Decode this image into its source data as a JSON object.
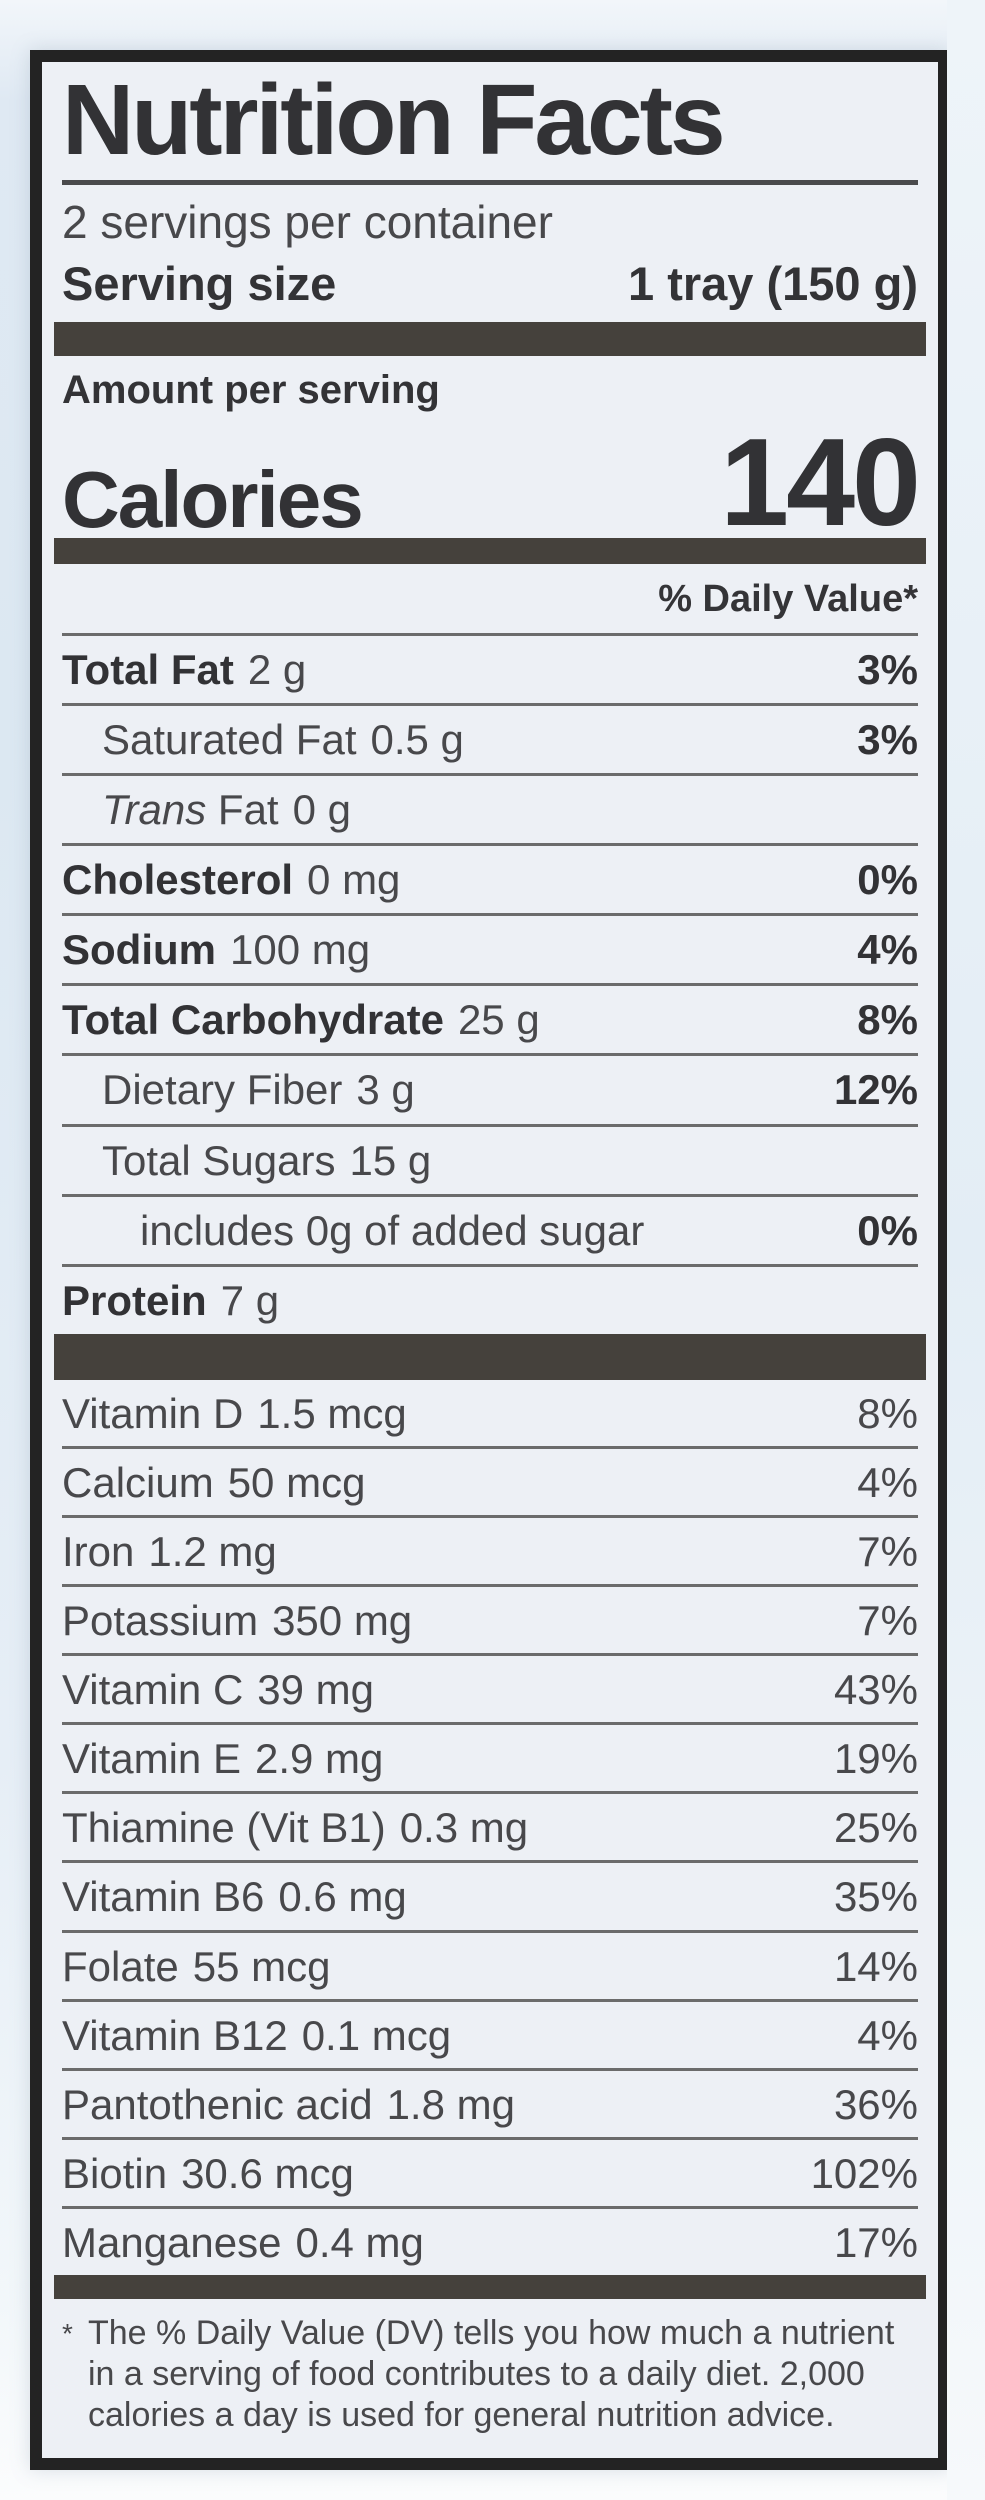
{
  "label": {
    "title": "Nutrition Facts",
    "servings_line": "2 servings per container",
    "serving_size_label": "Serving size",
    "serving_size_value": "1 tray (150 g)",
    "amount_per_serving_label": "Amount per serving",
    "calories_label": "Calories",
    "calories_value": "140",
    "daily_value_header": "% Daily Value*",
    "main_rows": [
      {
        "name": "Total Fat",
        "amount": "2 g",
        "dv": "3%",
        "bold": true,
        "dv_bold": true,
        "indent": 0
      },
      {
        "name": "Saturated Fat",
        "amount": "0.5 g",
        "dv": "3%",
        "bold": false,
        "dv_bold": true,
        "indent": 1
      },
      {
        "name": "Fat",
        "italic_prefix": "Trans",
        "amount": "0 g",
        "dv": "",
        "bold": false,
        "dv_bold": false,
        "indent": 1
      },
      {
        "name": "Cholesterol",
        "amount": "0 mg",
        "dv": "0%",
        "bold": true,
        "dv_bold": true,
        "indent": 0
      },
      {
        "name": "Sodium",
        "amount": "100 mg",
        "dv": "4%",
        "bold": true,
        "dv_bold": true,
        "indent": 0
      },
      {
        "name": "Total Carbohydrate",
        "amount": "25 g",
        "dv": "8%",
        "bold": true,
        "dv_bold": true,
        "indent": 0
      },
      {
        "name": "Dietary Fiber",
        "amount": "3 g",
        "dv": "12%",
        "bold": false,
        "dv_bold": true,
        "indent": 1
      },
      {
        "name": "Total Sugars",
        "amount": "15 g",
        "dv": "",
        "bold": false,
        "dv_bold": false,
        "indent": 1
      },
      {
        "name": "includes 0g of added sugar",
        "amount": "",
        "dv": "0%",
        "bold": false,
        "dv_bold": true,
        "indent": 2
      },
      {
        "name": "Protein",
        "amount": "7 g",
        "dv": "",
        "bold": true,
        "dv_bold": false,
        "indent": 0
      }
    ],
    "vitamin_rows": [
      {
        "name": "Vitamin D",
        "amount": "1.5 mcg",
        "dv": "8%"
      },
      {
        "name": "Calcium",
        "amount": "50 mcg",
        "dv": "4%"
      },
      {
        "name": "Iron",
        "amount": "1.2 mg",
        "dv": "7%"
      },
      {
        "name": "Potassium",
        "amount": "350 mg",
        "dv": "7%"
      },
      {
        "name": "Vitamin C",
        "amount": "39 mg",
        "dv": "43%"
      },
      {
        "name": "Vitamin E",
        "amount": "2.9 mg",
        "dv": "19%"
      },
      {
        "name": "Thiamine (Vit B1)",
        "amount": "0.3 mg",
        "dv": "25%"
      },
      {
        "name": "Vitamin B6",
        "amount": "0.6 mg",
        "dv": "35%"
      },
      {
        "name": "Folate",
        "amount": "55 mcg",
        "dv": "14%"
      },
      {
        "name": "Vitamin B12",
        "amount": "0.1 mcg",
        "dv": "4%"
      },
      {
        "name": "Pantothenic acid",
        "amount": "1.8 mg",
        "dv": "36%"
      },
      {
        "name": "Biotin",
        "amount": "30.6 mcg",
        "dv": "102%"
      },
      {
        "name": "Manganese",
        "amount": "0.4 mg",
        "dv": "17%"
      }
    ],
    "footnote_marker": "*",
    "footnote_text": "The % Daily Value (DV) tells you how much a nutrient in a serving of food contributes to a daily diet. 2,000 calories a day is used for general nutrition advice."
  },
  "colors": {
    "label_background": "#edf0f5",
    "ink_dark": "#323235",
    "ink_regular": "#48484b",
    "bar_dark": "#45413c",
    "hairline": "#6b6b6b",
    "film_blue": "#dce8f2"
  }
}
